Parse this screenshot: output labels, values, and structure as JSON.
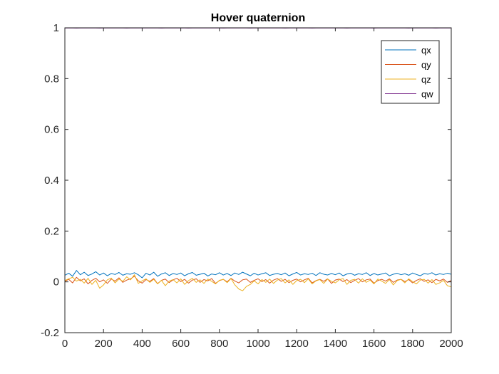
{
  "chart_data": {
    "type": "line",
    "title": "Hover quaternion",
    "xlabel": "",
    "ylabel": "",
    "xlim": [
      0,
      2000
    ],
    "ylim": [
      -0.2,
      1
    ],
    "xticks": [
      0,
      200,
      400,
      600,
      800,
      1000,
      1200,
      1400,
      1600,
      1800,
      2000
    ],
    "xtick_labels": [
      "0",
      "200",
      "400",
      "600",
      "800",
      "1000",
      "1200",
      "1400",
      "1600",
      "1800",
      "2000"
    ],
    "yticks": [
      -0.2,
      0,
      0.2,
      0.4,
      0.6,
      0.8,
      1
    ],
    "ytick_labels": [
      "-0.2",
      "0",
      "0.2",
      "0.4",
      "0.6",
      "0.8",
      "1"
    ],
    "grid": false,
    "legend_position": "top-right",
    "x": [
      0,
      20,
      40,
      60,
      80,
      100,
      120,
      140,
      160,
      180,
      200,
      220,
      240,
      260,
      280,
      300,
      320,
      340,
      360,
      380,
      400,
      420,
      440,
      460,
      480,
      500,
      520,
      540,
      560,
      580,
      600,
      620,
      640,
      660,
      680,
      700,
      720,
      740,
      760,
      780,
      800,
      820,
      840,
      860,
      880,
      900,
      920,
      940,
      960,
      980,
      1000,
      1020,
      1040,
      1060,
      1080,
      1100,
      1120,
      1140,
      1160,
      1180,
      1200,
      1220,
      1240,
      1260,
      1280,
      1300,
      1320,
      1340,
      1360,
      1380,
      1400,
      1420,
      1440,
      1460,
      1480,
      1500,
      1520,
      1540,
      1560,
      1580,
      1600,
      1620,
      1640,
      1660,
      1680,
      1700,
      1720,
      1740,
      1760,
      1780,
      1800,
      1820,
      1840,
      1860,
      1880,
      1900,
      1920,
      1940,
      1960,
      1980,
      2000
    ],
    "series": [
      {
        "name": "qx",
        "color": "#0072BD",
        "values": [
          0.026,
          0.034,
          0.022,
          0.045,
          0.028,
          0.038,
          0.025,
          0.031,
          0.04,
          0.027,
          0.035,
          0.024,
          0.033,
          0.029,
          0.037,
          0.026,
          0.032,
          0.03,
          0.036,
          0.028,
          0.016,
          0.034,
          0.027,
          0.038,
          0.022,
          0.031,
          0.036,
          0.025,
          0.033,
          0.029,
          0.035,
          0.024,
          0.032,
          0.037,
          0.026,
          0.03,
          0.034,
          0.023,
          0.031,
          0.028,
          0.036,
          0.027,
          0.033,
          0.025,
          0.035,
          0.029,
          0.038,
          0.031,
          0.024,
          0.034,
          0.027,
          0.032,
          0.036,
          0.025,
          0.03,
          0.033,
          0.028,
          0.035,
          0.024,
          0.031,
          0.037,
          0.027,
          0.032,
          0.029,
          0.034,
          0.025,
          0.036,
          0.03,
          0.027,
          0.033,
          0.028,
          0.035,
          0.024,
          0.031,
          0.034,
          0.026,
          0.032,
          0.029,
          0.036,
          0.025,
          0.033,
          0.027,
          0.031,
          0.035,
          0.024,
          0.03,
          0.034,
          0.028,
          0.032,
          0.026,
          0.035,
          0.029,
          0.024,
          0.033,
          0.03,
          0.036,
          0.027,
          0.032,
          0.029,
          0.034,
          0.03
        ]
      },
      {
        "name": "qy",
        "color": "#D95319",
        "values": [
          0.002,
          0.01,
          -0.004,
          0.018,
          0.004,
          0.012,
          -0.008,
          0.006,
          0.014,
          0.0,
          0.008,
          -0.006,
          0.011,
          0.003,
          0.016,
          -0.002,
          0.007,
          0.012,
          0.022,
          0.004,
          -0.005,
          0.009,
          0.002,
          0.013,
          -0.007,
          0.006,
          0.011,
          -0.003,
          0.008,
          0.014,
          0.001,
          0.01,
          -0.005,
          0.007,
          0.012,
          -0.002,
          0.009,
          0.004,
          0.013,
          -0.006,
          0.005,
          0.01,
          0.0,
          0.014,
          0.003,
          -0.004,
          0.008,
          0.011,
          -0.002,
          0.006,
          0.012,
          0.001,
          0.009,
          -0.005,
          0.007,
          0.013,
          0.002,
          0.01,
          -0.003,
          0.006,
          0.011,
          0.0,
          0.008,
          0.014,
          -0.004,
          0.005,
          0.01,
          0.002,
          0.012,
          -0.006,
          0.007,
          0.011,
          0.001,
          0.009,
          -0.003,
          0.006,
          0.013,
          0.0,
          0.008,
          0.011,
          -0.005,
          0.005,
          0.01,
          0.003,
          0.012,
          -0.002,
          0.007,
          0.01,
          0.001,
          0.009,
          -0.004,
          0.006,
          0.012,
          0.002,
          0.008,
          -0.003,
          0.01,
          0.004,
          0.011,
          -0.002,
          0.005
        ]
      },
      {
        "name": "qz",
        "color": "#EDB120",
        "values": [
          0.005,
          0.012,
          0.018,
          0.003,
          0.01,
          -0.005,
          0.014,
          -0.01,
          0.006,
          -0.025,
          -0.012,
          0.008,
          0.015,
          -0.004,
          0.011,
          0.002,
          0.02,
          0.008,
          0.028,
          -0.006,
          0.004,
          0.012,
          -0.002,
          0.01,
          -0.008,
          0.006,
          -0.015,
          0.003,
          0.009,
          -0.004,
          0.012,
          -0.01,
          0.005,
          0.014,
          -0.002,
          0.008,
          -0.006,
          0.011,
          0.002,
          -0.008,
          0.006,
          0.01,
          -0.003,
          0.013,
          -0.012,
          -0.028,
          -0.035,
          -0.018,
          -0.01,
          0.004,
          -0.008,
          0.009,
          -0.002,
          0.011,
          -0.006,
          0.007,
          0.013,
          -0.004,
          0.008,
          -0.01,
          0.005,
          0.01,
          -0.003,
          0.012,
          -0.008,
          0.004,
          0.009,
          -0.006,
          0.011,
          0.002,
          -0.004,
          0.008,
          0.013,
          -0.01,
          0.006,
          0.01,
          -0.005,
          0.012,
          -0.002,
          0.007,
          -0.008,
          0.011,
          0.003,
          -0.006,
          0.009,
          -0.012,
          0.005,
          0.01,
          -0.004,
          0.012,
          0.001,
          -0.008,
          0.007,
          0.01,
          -0.005,
          0.009,
          -0.01,
          -0.004,
          0.006,
          -0.015,
          -0.02
        ]
      },
      {
        "name": "qw",
        "color": "#7E2F8E",
        "values": [
          0.999,
          0.9988,
          0.9991,
          0.9987,
          0.999,
          0.9989,
          0.9991,
          0.9988,
          0.999,
          0.9987,
          0.9989,
          0.9991,
          0.9988,
          0.999,
          0.9989,
          0.9991,
          0.9987,
          0.999,
          0.9988,
          0.9991,
          0.9989,
          0.999,
          0.9988,
          0.9991,
          0.9989,
          0.9987,
          0.999,
          0.9991,
          0.9988,
          0.999,
          0.9989,
          0.9991,
          0.9987,
          0.999,
          0.9988,
          0.9991,
          0.9989,
          0.999,
          0.9988,
          0.9991,
          0.9989,
          0.9987,
          0.999,
          0.9991,
          0.9988,
          0.999,
          0.9989,
          0.9991,
          0.9987,
          0.999,
          0.9988,
          0.9991,
          0.9989,
          0.999,
          0.9988,
          0.9991,
          0.9989,
          0.9987,
          0.999,
          0.9991,
          0.9988,
          0.999,
          0.9989,
          0.9991,
          0.9987,
          0.999,
          0.9988,
          0.9991,
          0.9989,
          0.999,
          0.9988,
          0.9991,
          0.9989,
          0.9987,
          0.999,
          0.9991,
          0.9988,
          0.999,
          0.9989,
          0.9991,
          0.9987,
          0.999,
          0.9988,
          0.9991,
          0.9989,
          0.999,
          0.9988,
          0.9991,
          0.9989,
          0.9987,
          0.999,
          0.9991,
          0.9988,
          0.999,
          0.9989,
          0.9991,
          0.9987,
          0.999,
          0.9988,
          0.9991,
          0.999
        ]
      }
    ]
  }
}
